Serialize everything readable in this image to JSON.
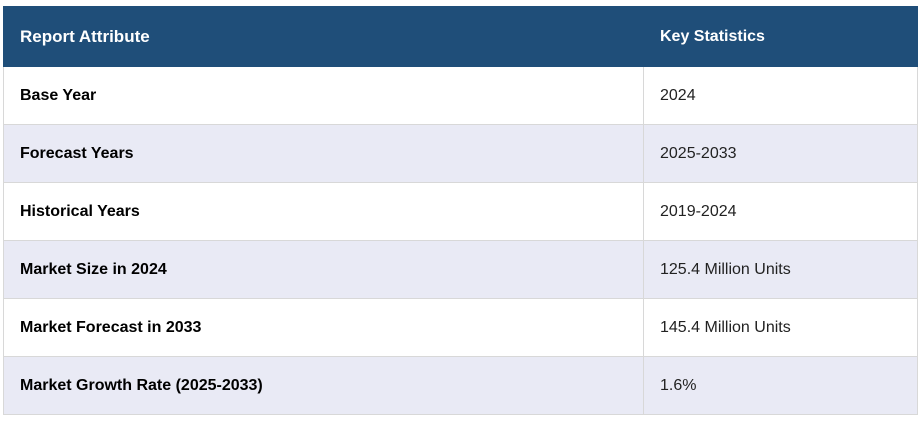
{
  "table": {
    "header": [
      "Report Attribute",
      "Key Statistics"
    ],
    "rows": [
      [
        "Base Year",
        "2024"
      ],
      [
        "Forecast Years",
        "2025-2033"
      ],
      [
        "Historical Years",
        "2019-2024"
      ],
      [
        "Market Size in 2024",
        "125.4 Million Units"
      ],
      [
        "Market Forecast in 2033",
        "145.4 Million Units"
      ],
      [
        "Market Growth Rate (2025-2033)",
        "1.6%"
      ]
    ]
  }
}
